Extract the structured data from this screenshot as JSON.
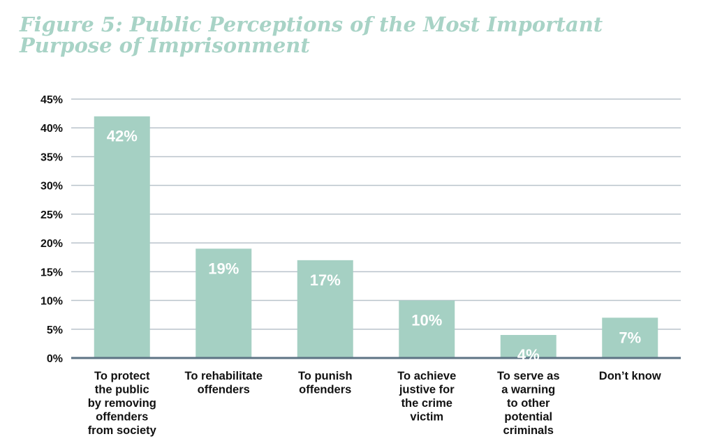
{
  "title": {
    "prefix": "Figure 5:",
    "text": "Public Perceptions of the Most Important Purpose of Imprisonment"
  },
  "colors": {
    "bar": "#a5d0c3",
    "title": "#a8d3c6",
    "grid": "#b9c3cb",
    "axis": "#5d7384",
    "text": "#111111"
  },
  "chart_data": {
    "type": "bar",
    "categories": [
      [
        "To protect",
        "the public",
        "by removing",
        "offenders",
        "from society"
      ],
      [
        "To rehabilitate",
        "offenders"
      ],
      [
        "To punish",
        "offenders"
      ],
      [
        "To achieve",
        "justive for",
        "the crime",
        "victim"
      ],
      [
        "To serve as",
        "a warning",
        "to other",
        "potential",
        "criminals"
      ],
      [
        "Don’t know"
      ]
    ],
    "values": [
      42,
      19,
      17,
      10,
      4,
      7
    ],
    "data_labels": [
      "42%",
      "19%",
      "17%",
      "10%",
      "4%",
      "7%"
    ],
    "ylim": [
      0,
      45
    ],
    "y_ticks": [
      0,
      5,
      10,
      15,
      20,
      25,
      30,
      35,
      40,
      45
    ],
    "y_tick_labels": [
      "0%",
      "5%",
      "10%",
      "15%",
      "20%",
      "25%",
      "30%",
      "35%",
      "40%",
      "45%"
    ],
    "xlabel": "",
    "ylabel": "",
    "grid": true,
    "legend": "none"
  }
}
